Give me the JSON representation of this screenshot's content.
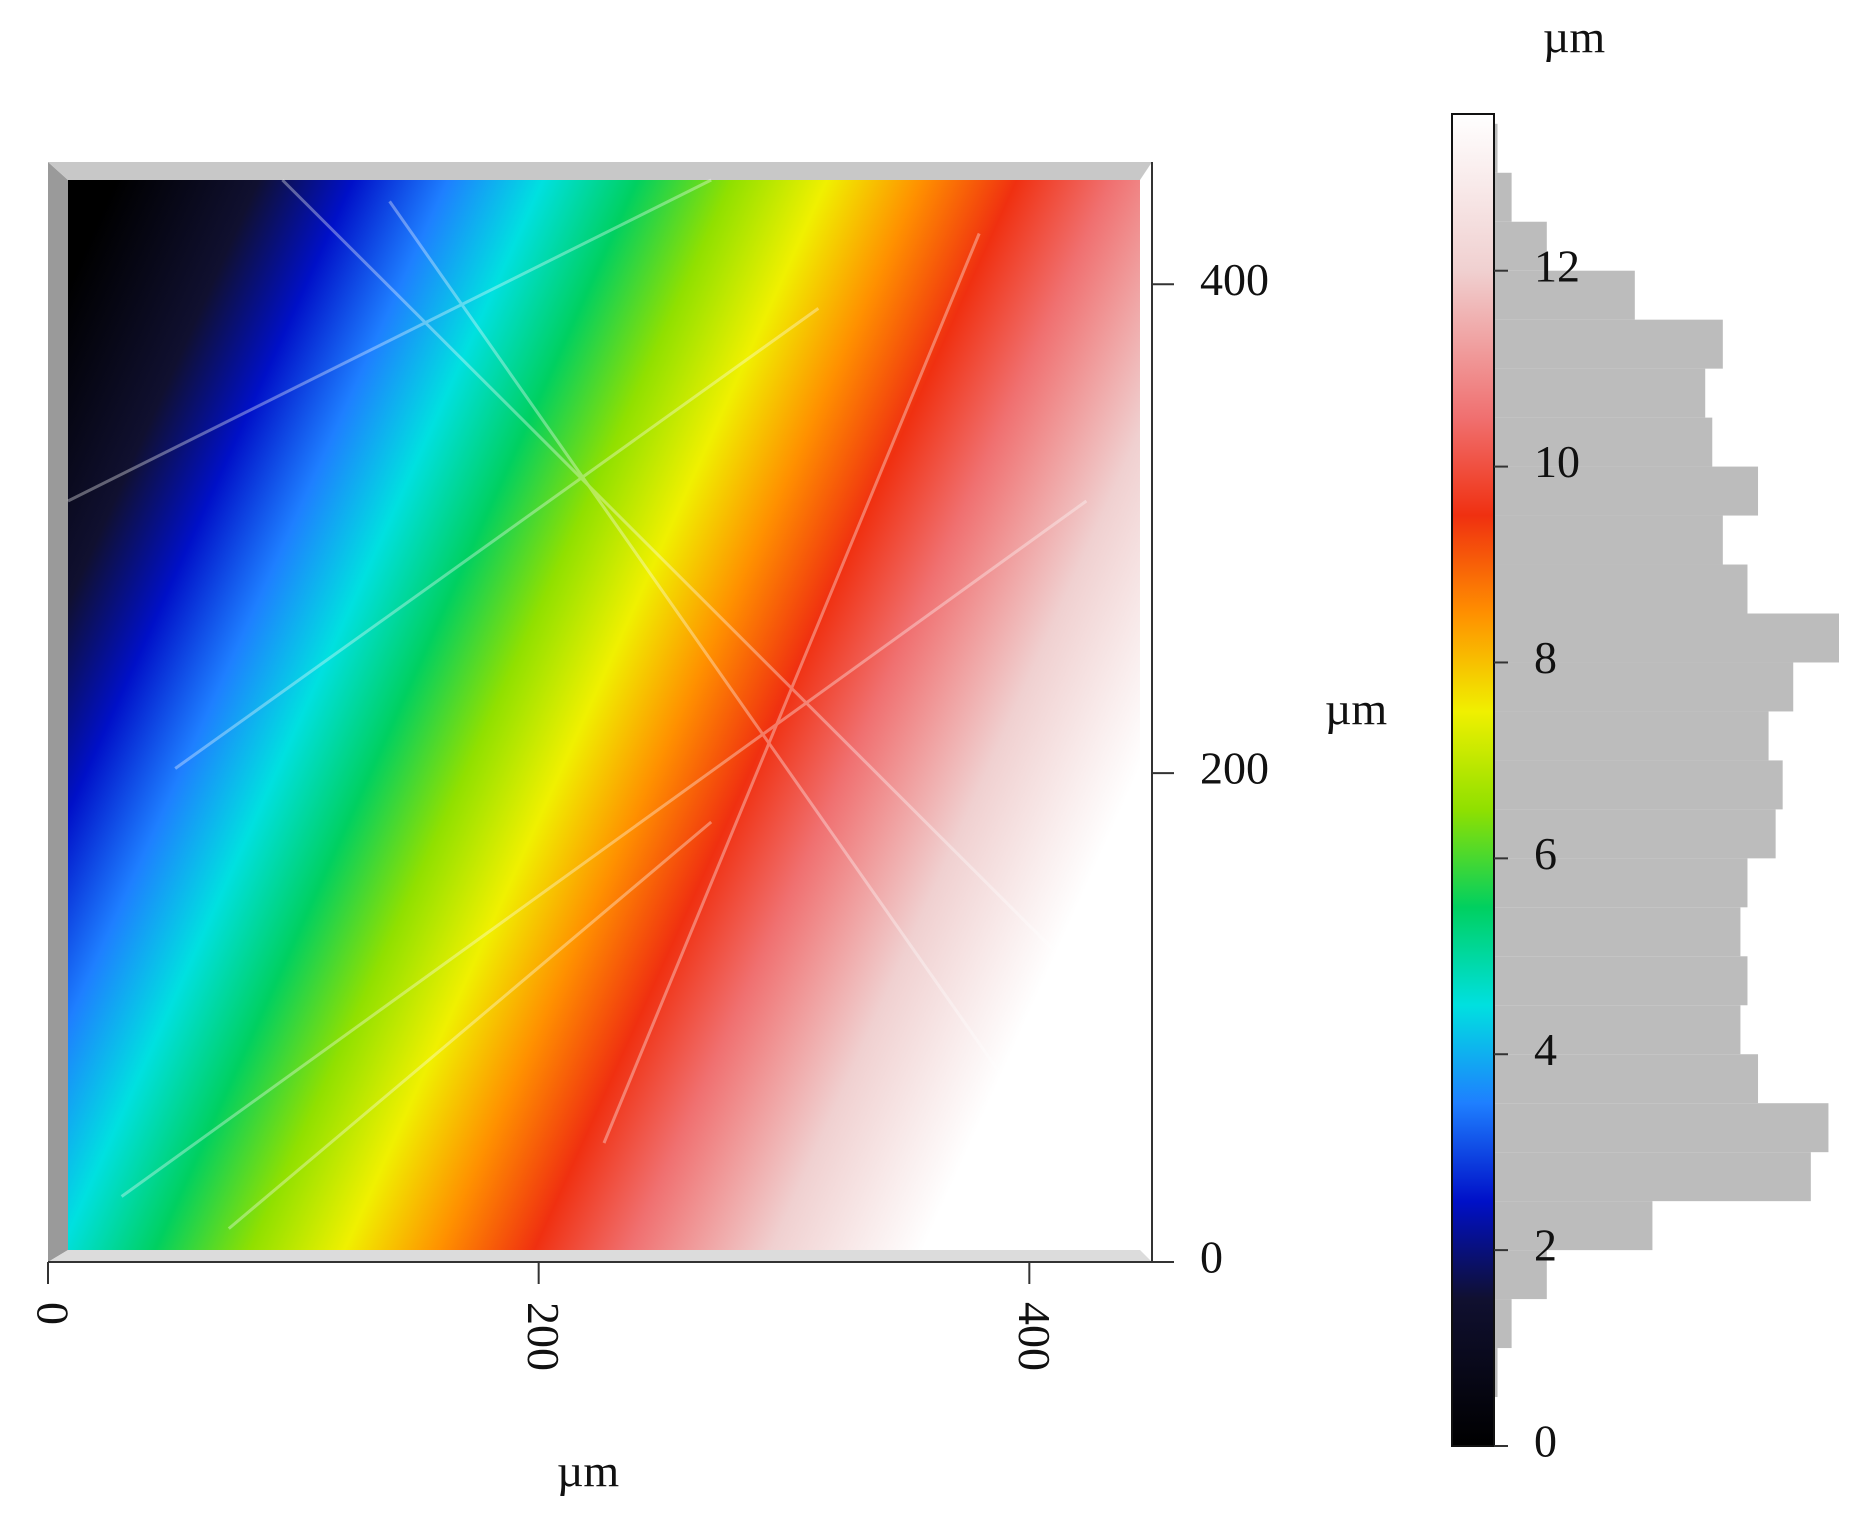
{
  "chart_data": {
    "type": "surface",
    "xlabel": "µm",
    "ylabel": "µm",
    "xlim": [
      0,
      450
    ],
    "ylim": [
      0,
      450
    ],
    "xticks": [
      0,
      200,
      400
    ],
    "yticks": [
      0,
      200,
      400
    ],
    "colorbar": {
      "label": "µm",
      "lim": [
        0,
        13.6
      ],
      "ticks": [
        0,
        2,
        4,
        6,
        8,
        10,
        12
      ],
      "colormap": [
        {
          "value": 0,
          "color": "#000000"
        },
        {
          "value": 1.5,
          "color": "#101030"
        },
        {
          "value": 2.5,
          "color": "#0010c8"
        },
        {
          "value": 3.5,
          "color": "#1e7fff"
        },
        {
          "value": 4.5,
          "color": "#00e0e0"
        },
        {
          "value": 5.5,
          "color": "#00d060"
        },
        {
          "value": 6.5,
          "color": "#90e000"
        },
        {
          "value": 7.5,
          "color": "#f0f000"
        },
        {
          "value": 8.5,
          "color": "#ff9000"
        },
        {
          "value": 9.5,
          "color": "#f03010"
        },
        {
          "value": 10.5,
          "color": "#f07070"
        },
        {
          "value": 12,
          "color": "#f0d0d0"
        },
        {
          "value": 13.6,
          "color": "#ffffff"
        }
      ]
    },
    "histogram": {
      "color": "#bcbcbc",
      "bins": [
        0,
        0.5,
        1,
        1.5,
        2,
        2.5,
        3,
        3.5,
        4,
        4.5,
        5,
        5.5,
        6,
        6.5,
        7,
        7.5,
        8,
        8.5,
        9,
        9.5,
        10,
        10.5,
        11,
        11.5,
        12,
        12.5,
        13,
        13.5
      ],
      "counts": [
        0,
        1,
        5,
        15,
        45,
        90,
        95,
        75,
        70,
        72,
        70,
        72,
        80,
        82,
        78,
        85,
        98,
        72,
        65,
        75,
        62,
        60,
        65,
        40,
        15,
        5,
        1
      ]
    }
  }
}
